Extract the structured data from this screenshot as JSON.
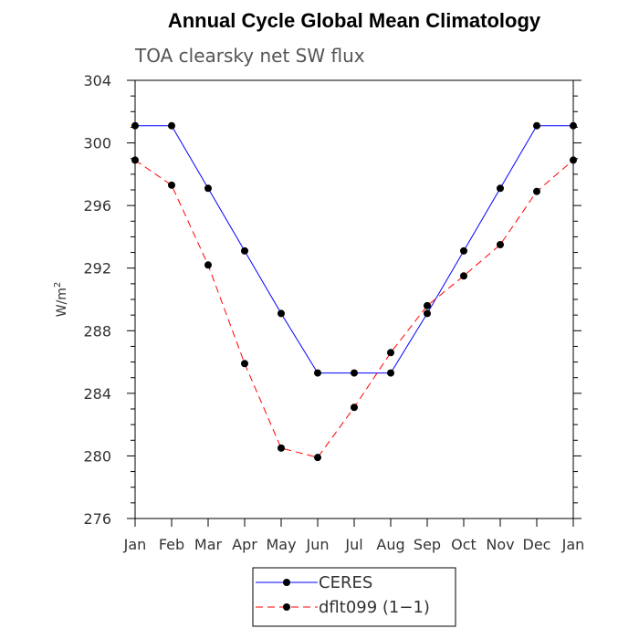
{
  "chart_data": {
    "type": "line",
    "title": "Annual Cycle Global Mean Climatology",
    "subtitle": "TOA clearsky net SW flux",
    "ylabel": "W/m",
    "ylabel_superscript": "2",
    "xlabel": "",
    "categories": [
      "Jan",
      "Feb",
      "Mar",
      "Apr",
      "May",
      "Jun",
      "Jul",
      "Aug",
      "Sep",
      "Oct",
      "Nov",
      "Dec",
      "Jan"
    ],
    "ylim": [
      276,
      304
    ],
    "yticks": [
      276,
      280,
      284,
      288,
      292,
      296,
      300,
      304
    ],
    "series": [
      {
        "name": "CERES",
        "color": "#0000ff",
        "dash": "solid",
        "marker_color": "#000000",
        "values": [
          301.1,
          301.1,
          297.1,
          293.1,
          289.1,
          285.3,
          285.3,
          285.3,
          289.1,
          293.1,
          297.1,
          301.1,
          301.1
        ]
      },
      {
        "name": "dflt099 (1−1)",
        "color": "#ff0000",
        "dash": "dashed",
        "marker_color": "#000000",
        "values": [
          298.9,
          297.3,
          292.2,
          285.9,
          280.5,
          279.9,
          283.1,
          286.6,
          289.6,
          291.5,
          293.5,
          296.9,
          298.9
        ]
      }
    ],
    "legend_position": "bottom-center"
  }
}
